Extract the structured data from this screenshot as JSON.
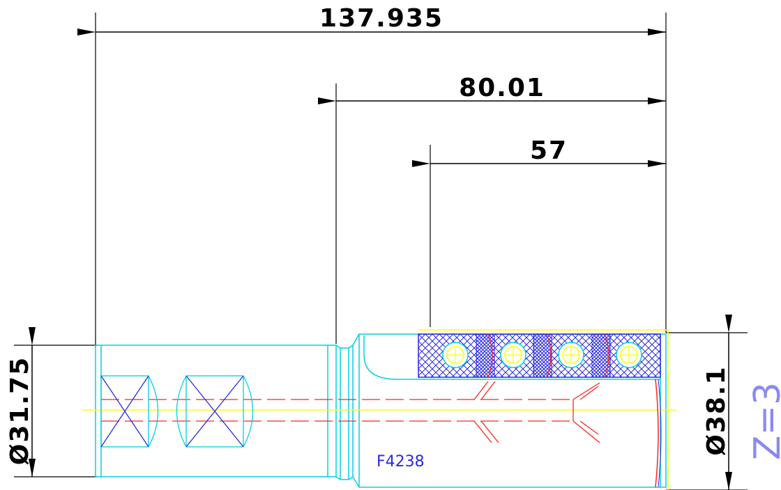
{
  "dimensions": {
    "overall_length": "137.935",
    "mid_length": "80.01",
    "short_length": "57",
    "shank_diameter": "Ø31.75",
    "body_diameter": "Ø38.1"
  },
  "part_number": "F4238",
  "flute_count_label": "Z=3",
  "colors": {
    "outline": "#00d0e0",
    "hatch": "#2a2ae0",
    "centerline": "#ff2020",
    "accent": "#ffff00",
    "dimension": "#000000"
  }
}
